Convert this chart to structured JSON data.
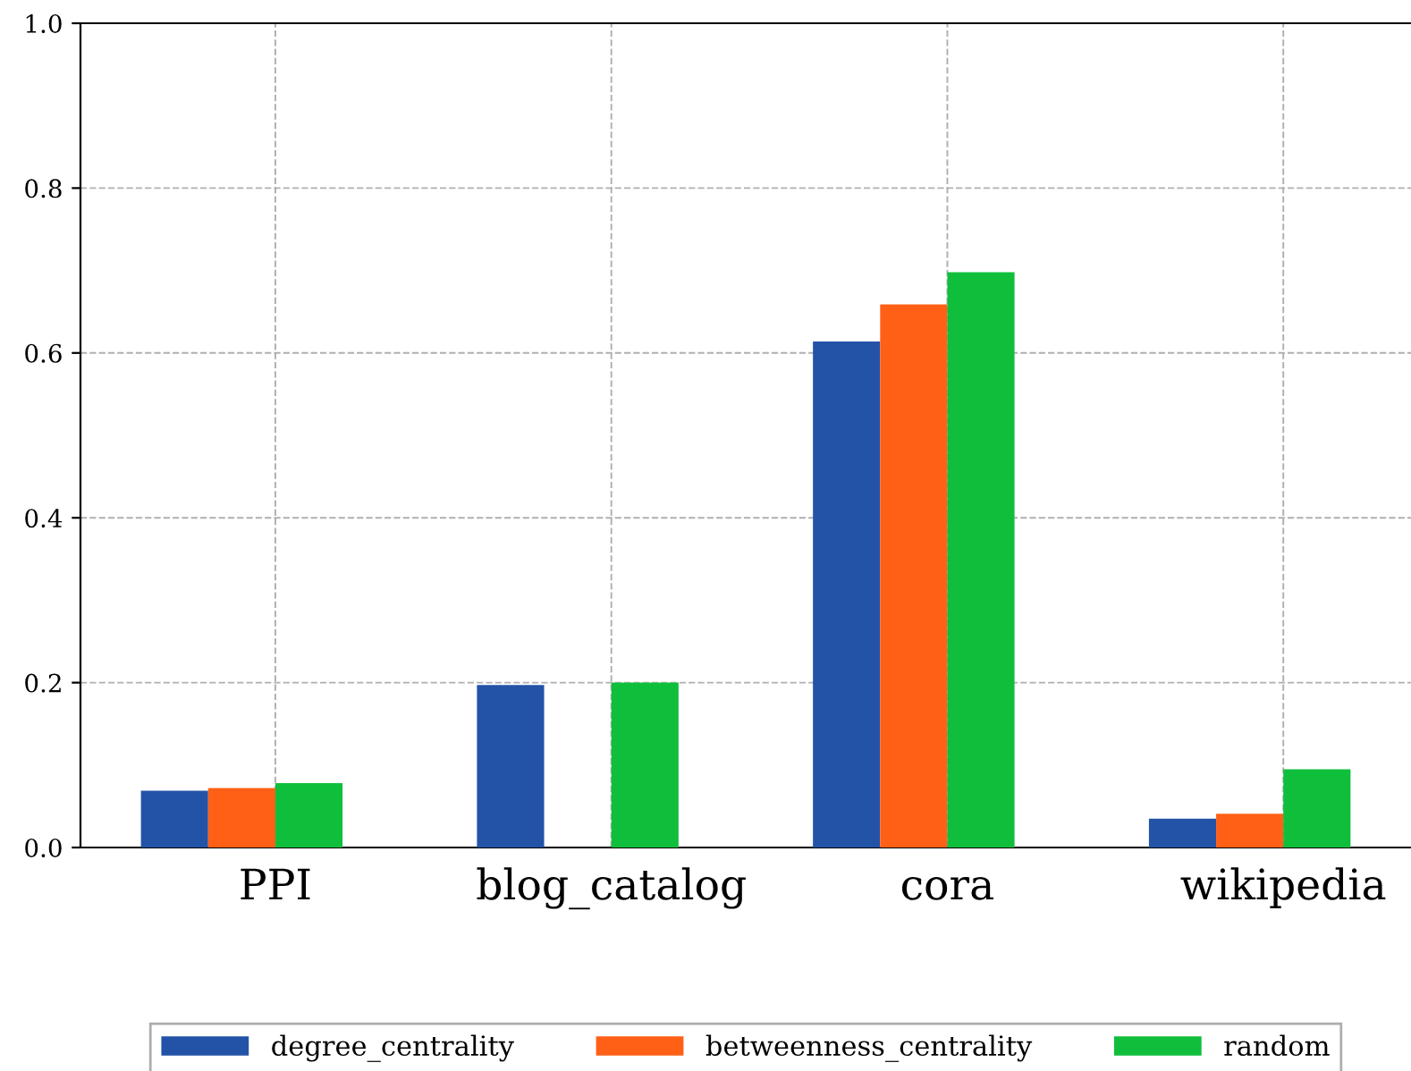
{
  "chart_data": {
    "type": "bar",
    "categories": [
      "PPI",
      "blog_catalog",
      "cora",
      "wikipedia"
    ],
    "series": [
      {
        "name": "degree_centrality",
        "color": "#2253a7",
        "values": [
          0.069,
          0.197,
          0.614,
          0.035
        ]
      },
      {
        "name": "betweenness_centrality",
        "color": "#ff6016",
        "values": [
          0.072,
          null,
          0.659,
          0.041
        ]
      },
      {
        "name": "random",
        "color": "#0fbf3c",
        "values": [
          0.078,
          0.2,
          0.698,
          0.095
        ]
      }
    ],
    "ylim": [
      0,
      1.0
    ],
    "yticks": [
      {
        "value": 0,
        "label": "0.0"
      },
      0.2,
      0.4,
      0.6,
      0.8,
      {
        "value": 1.0,
        "label": "1.0"
      }
    ],
    "grid": true,
    "legend": "bottom"
  }
}
